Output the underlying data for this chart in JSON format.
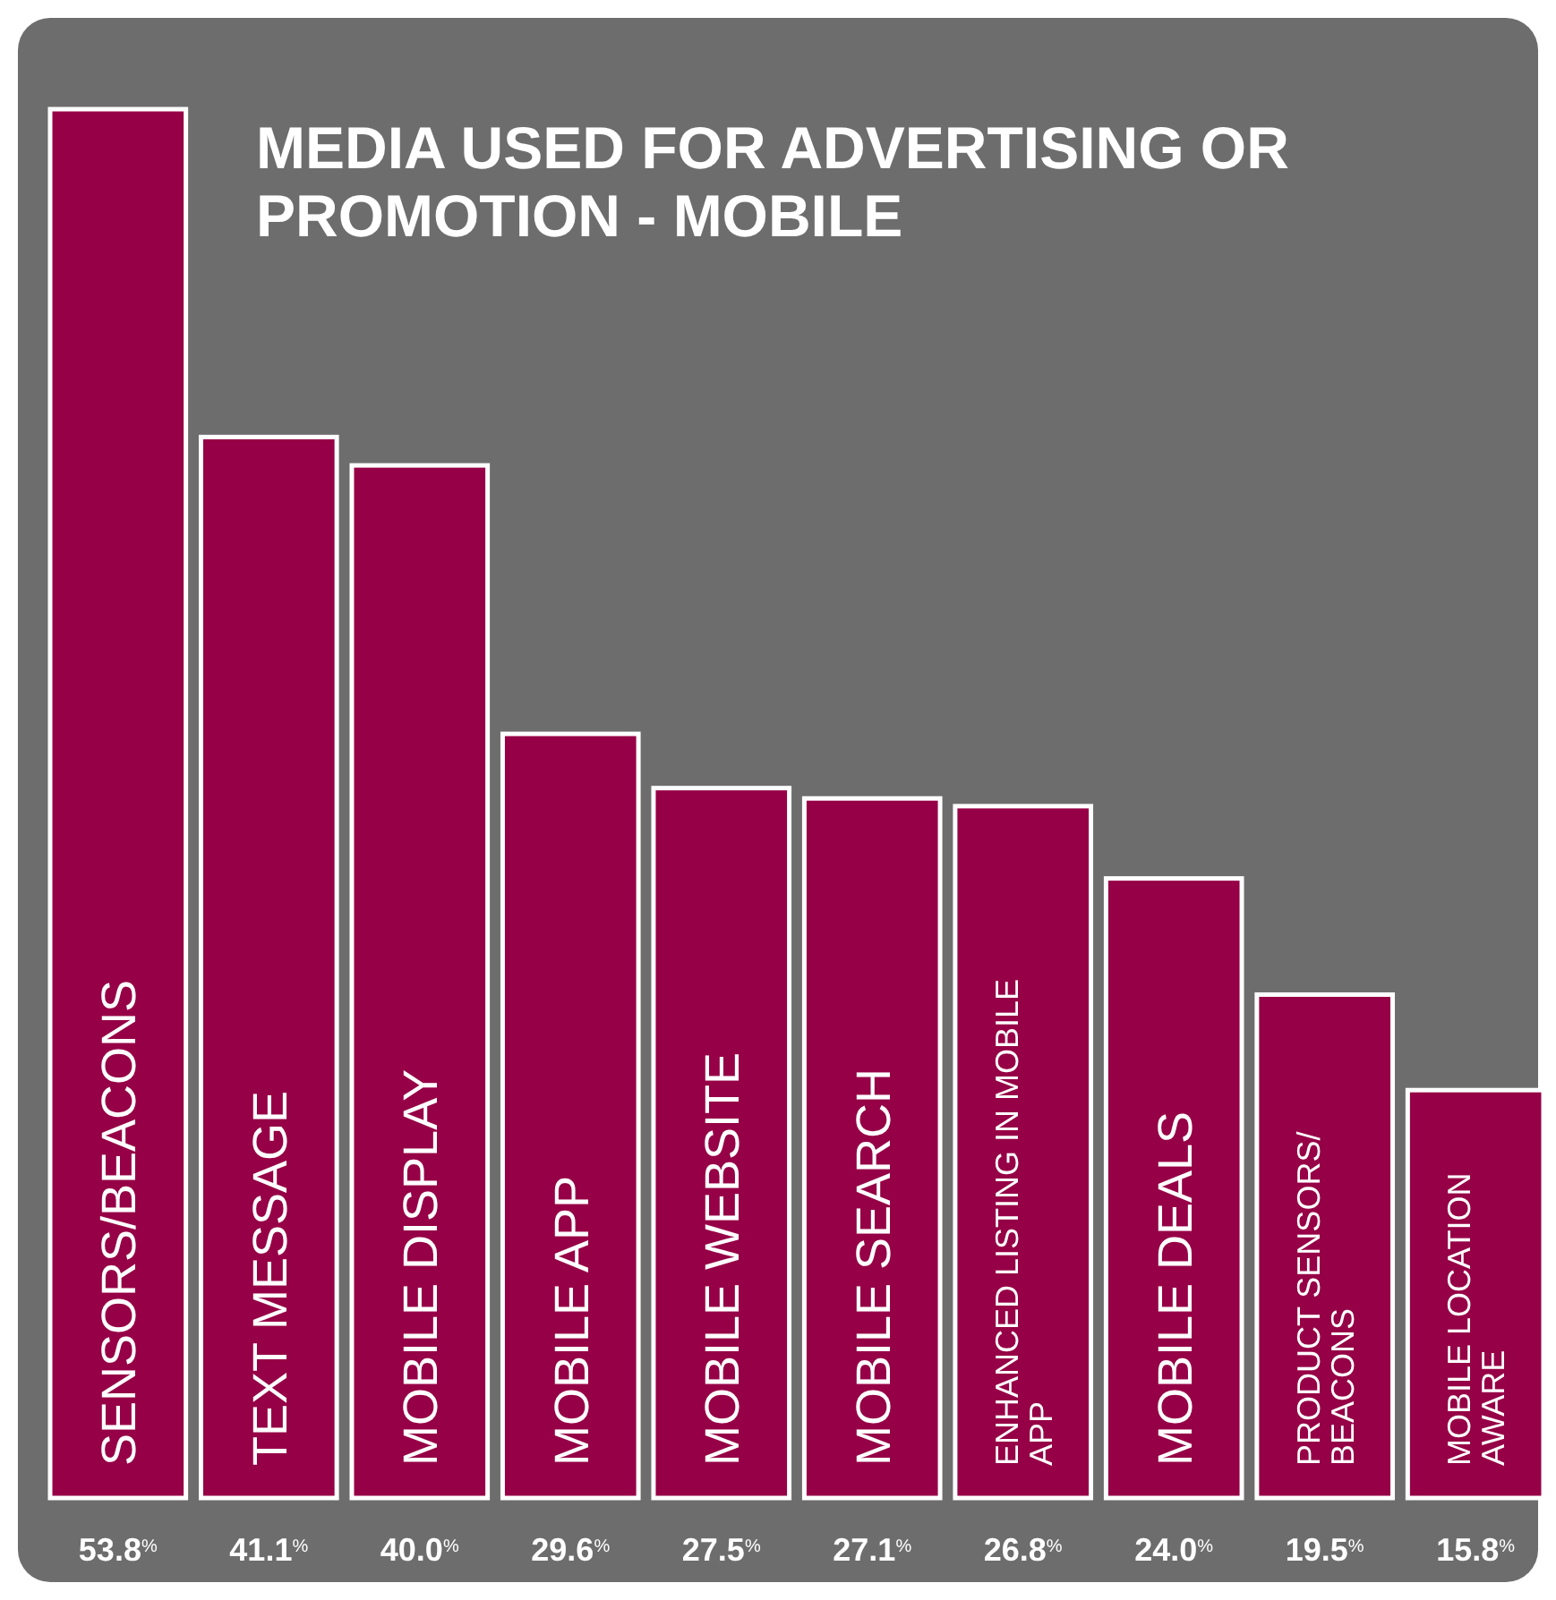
{
  "chart_data": {
    "type": "bar",
    "title": "MEDIA USED FOR ADVERTISING OR PROMOTION - MOBILE",
    "categories": [
      "SENSORS/BEACONS",
      "TEXT MESSAGE",
      "MOBILE DISPLAY",
      "MOBILE APP",
      "MOBILE WEBSITE",
      "MOBILE SEARCH",
      "ENHANCED LISTING IN MOBILE APP",
      "MOBILE DEALS",
      "PRODUCT SENSORS/ BEACONS",
      "MOBILE LOCATION AWARE"
    ],
    "values": [
      53.8,
      41.1,
      40.0,
      29.6,
      27.5,
      27.1,
      26.8,
      24.0,
      19.5,
      15.8
    ],
    "value_labels": [
      "53.8$^{%}$",
      "41.1$^{%}$",
      "40.0$^{%}$",
      "29.6$^{%}$",
      "27.5$^{%}$",
      "27.1$^{%}$",
      "26.8$^{%}$",
      "24.0$^{%}$",
      "19.5$^{%}$",
      "15.8$^{%}$"
    ],
    "color": "#960046"
  }
}
